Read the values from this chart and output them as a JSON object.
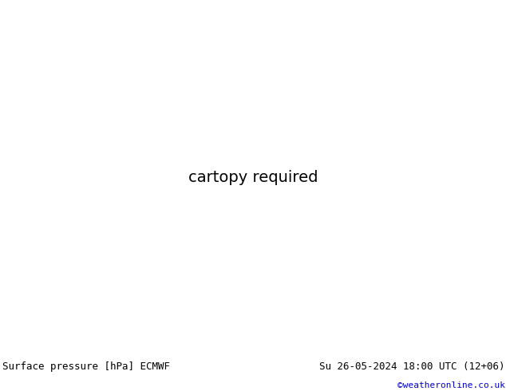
{
  "title_left": "Surface pressure [hPa] ECMWF",
  "title_right": "Su 26-05-2024 18:00 UTC (12+06)",
  "credit": "©weatheronline.co.uk",
  "fig_width": 6.34,
  "fig_height": 4.9,
  "dpi": 100,
  "ocean_color": "#d0d8e8",
  "land_color": "#b8d8a0",
  "bottom_bar_color": "#e8e8e8",
  "title_fontsize": 9,
  "credit_color": "#0000cc",
  "credit_fontsize": 8,
  "lon_min": -92,
  "lon_max": 22,
  "lat_min": -62,
  "lat_max": 16
}
